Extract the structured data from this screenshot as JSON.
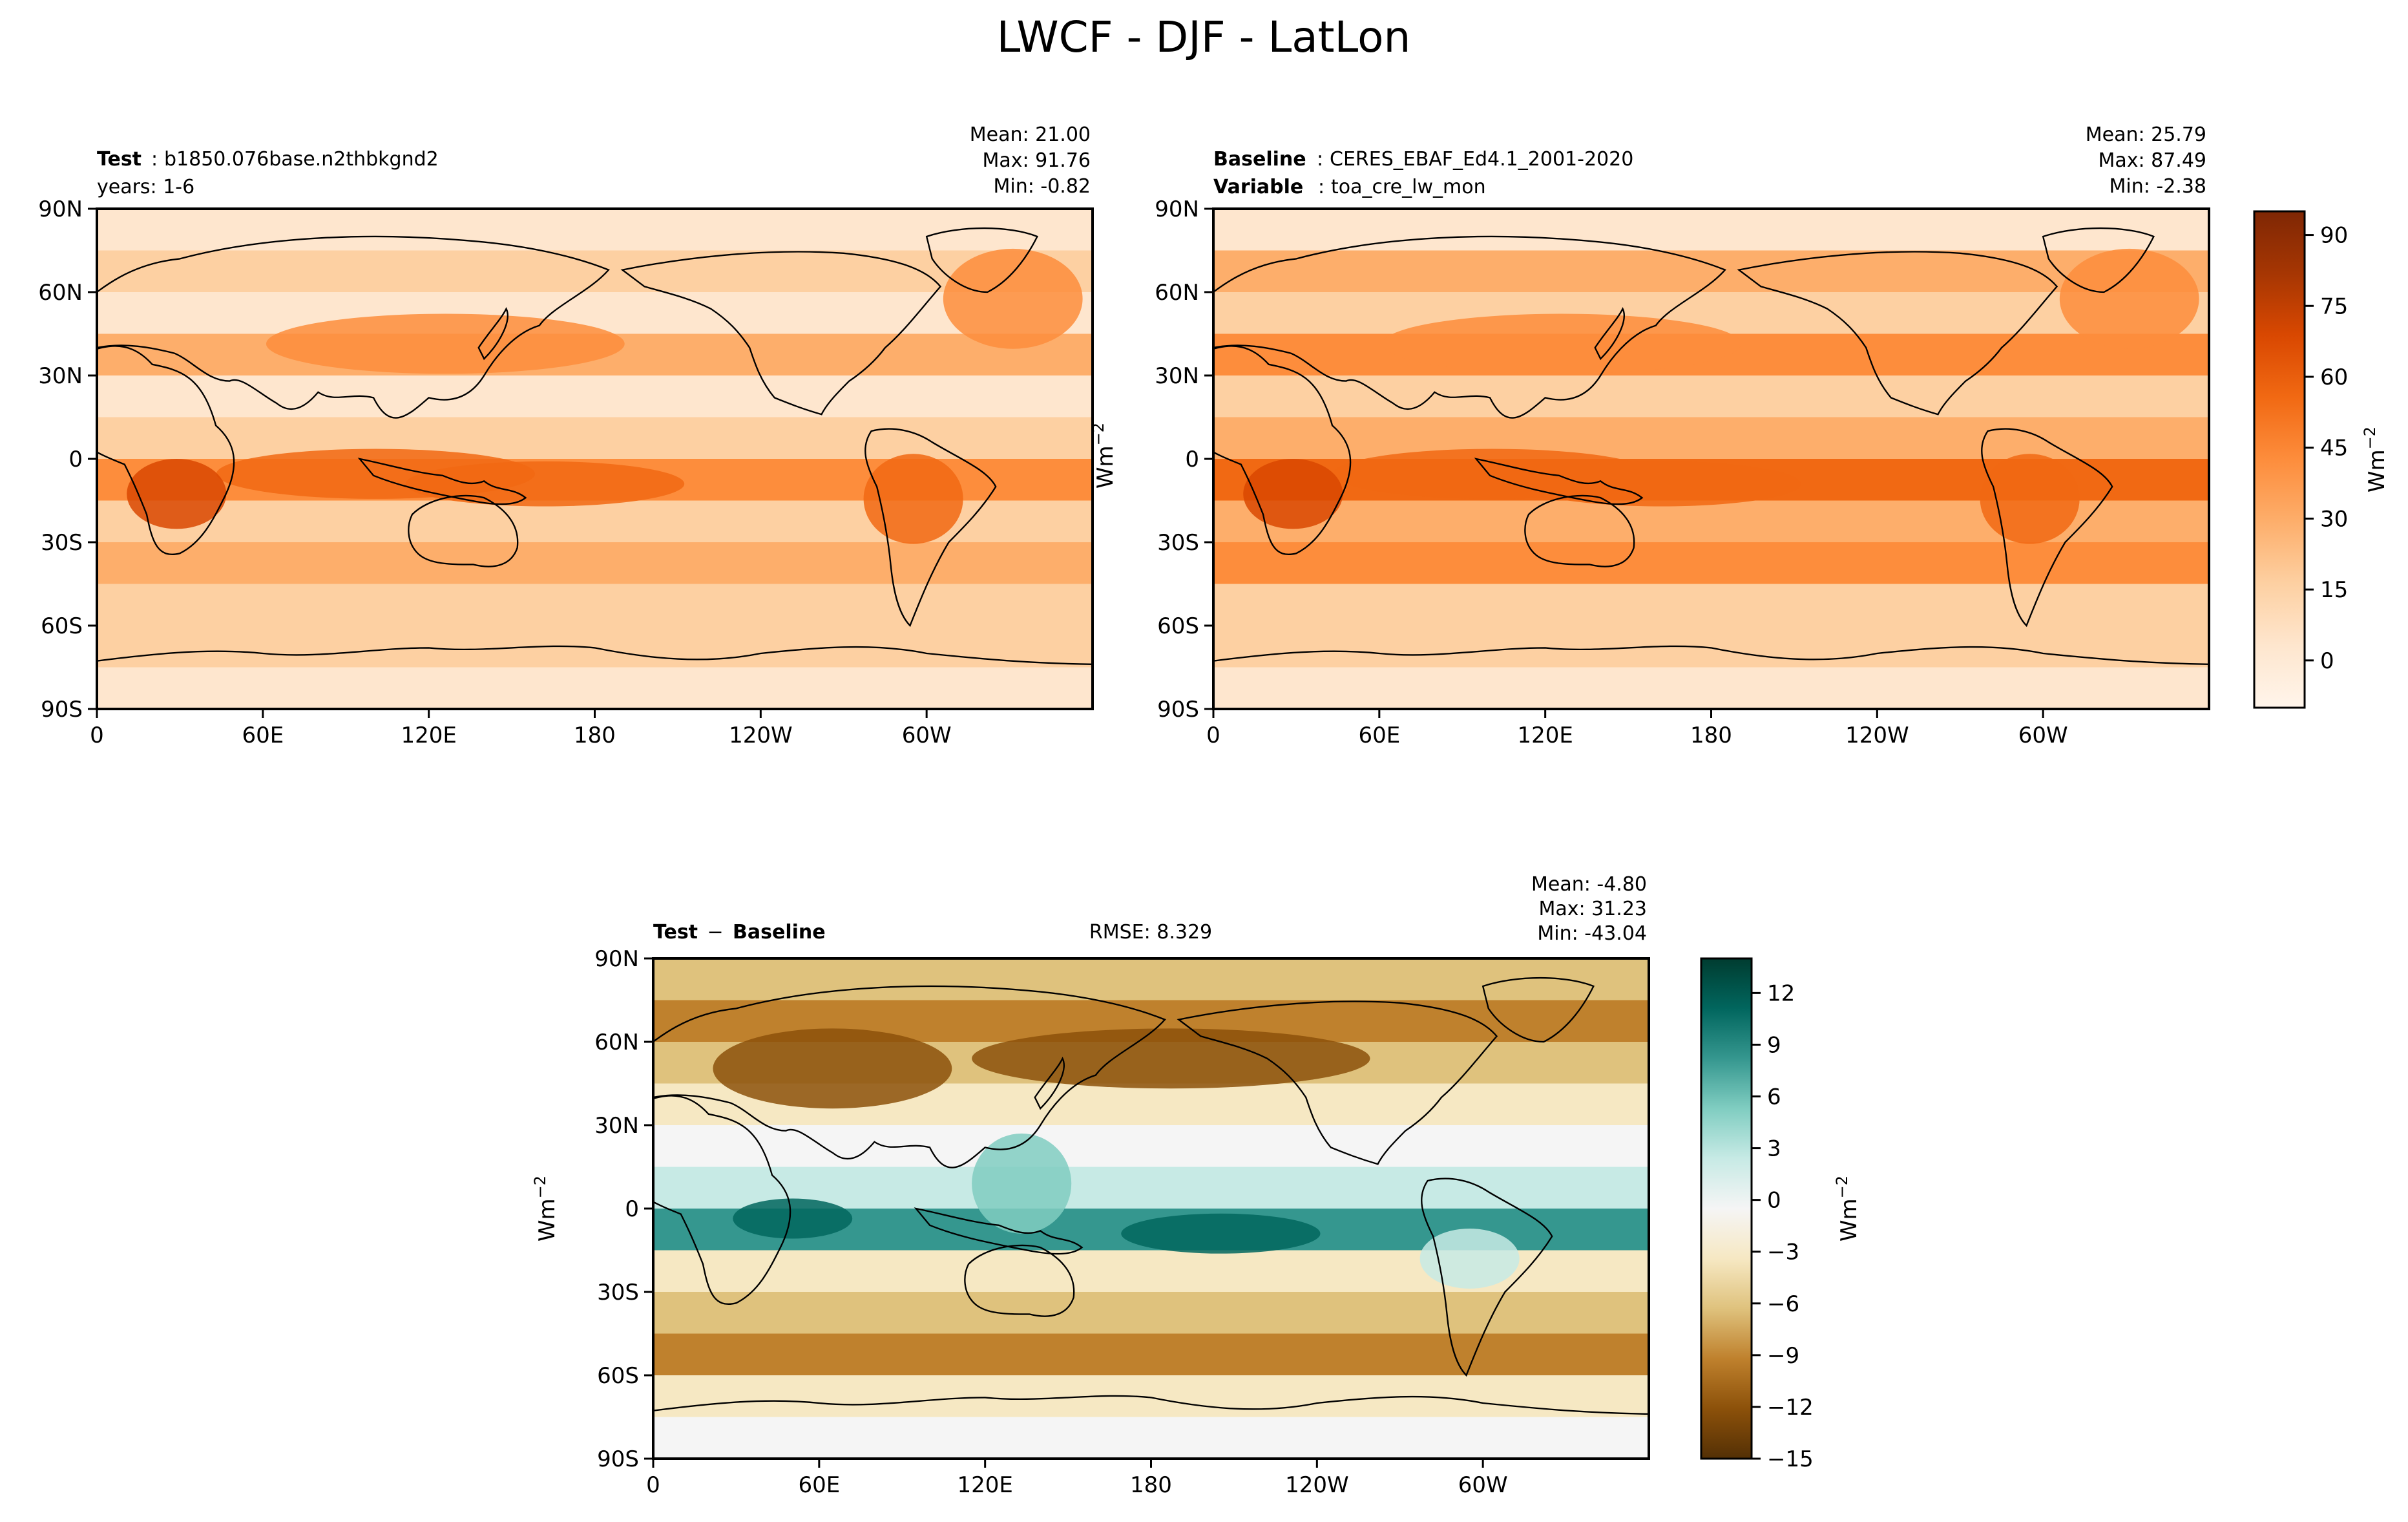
{
  "figure": {
    "title": "LWCF - DJF - LatLon"
  },
  "colors": {
    "seq": [
      "#fff5eb",
      "#fee6ce",
      "#fdd0a2",
      "#fdae6b",
      "#fd8d3c",
      "#f16913",
      "#d94801",
      "#a63603",
      "#7f2704"
    ],
    "div": [
      "#543005",
      "#8c510a",
      "#bf812d",
      "#dfc27d",
      "#f6e8c3",
      "#f5f5f5",
      "#c7eae5",
      "#80cdc1",
      "#35978f",
      "#01665e",
      "#003c30"
    ],
    "land": "#000000"
  },
  "panels": [
    {
      "id": "test",
      "left_label": "Test",
      "left_value": "b1850.076base.n2thbkgnd2",
      "left_line2": "years: 1-6",
      "stats": [
        "Mean: 21.00",
        "Max: 91.76",
        "Min: -0.82"
      ],
      "units": "Wm",
      "units_exp": "−2"
    },
    {
      "id": "baseline",
      "left_label": "Baseline",
      "left_value": "CERES_EBAF_Ed4.1_2001-2020",
      "left_label2": "Variable",
      "left_value2": "toa_cre_lw_mon",
      "stats": [
        "Mean: 25.79",
        "Max: 87.49",
        "Min: -2.38"
      ]
    },
    {
      "id": "diff",
      "left_label": "Test",
      "left_sep": " − ",
      "left_label_b": "Baseline",
      "center_text": "RMSE: 8.329",
      "stats": [
        "Mean: -4.80",
        "Max: 31.23",
        "Min: -43.04"
      ],
      "units": "Wm",
      "units_exp": "−2"
    }
  ],
  "chart_data": [
    {
      "type": "heatmap",
      "title": "Test: b1850.076base.n2thbkgnd2",
      "subtitle": "years: 1-6",
      "variable": "LWCF",
      "season": "DJF",
      "xticks": [
        "0",
        "60E",
        "120E",
        "180",
        "120W",
        "60W"
      ],
      "xtick_values": [
        0,
        60,
        120,
        180,
        240,
        300
      ],
      "yticks": [
        "90N",
        "60N",
        "30N",
        "0",
        "30S",
        "60S",
        "90S"
      ],
      "ytick_values": [
        90,
        60,
        30,
        0,
        -30,
        -60,
        -90
      ],
      "xlim": [
        0,
        360
      ],
      "ylim": [
        -90,
        90
      ],
      "mean": 21.0,
      "max": 91.76,
      "min": -0.82,
      "units": "Wm-2"
    },
    {
      "type": "heatmap",
      "title": "Baseline: CERES_EBAF_Ed4.1_2001-2020",
      "subtitle": "Variable: toa_cre_lw_mon",
      "xticks": [
        "0",
        "60E",
        "120E",
        "180",
        "120W",
        "60W"
      ],
      "xtick_values": [
        0,
        60,
        120,
        180,
        240,
        300
      ],
      "yticks": [
        "90N",
        "60N",
        "30N",
        "0",
        "30S",
        "60S",
        "90S"
      ],
      "ytick_values": [
        90,
        60,
        30,
        0,
        -30,
        -60,
        -90
      ],
      "xlim": [
        0,
        360
      ],
      "ylim": [
        -90,
        90
      ],
      "mean": 25.79,
      "max": 87.49,
      "min": -2.38,
      "colorbar": {
        "ticks": [
          "90",
          "75",
          "60",
          "45",
          "30",
          "15",
          "0"
        ],
        "tick_values": [
          90,
          75,
          60,
          45,
          30,
          15,
          0
        ],
        "range": [
          -10,
          95
        ],
        "label": "Wm-2"
      }
    },
    {
      "type": "heatmap",
      "title": "Test − Baseline",
      "rmse": 8.329,
      "xticks": [
        "0",
        "60E",
        "120E",
        "180",
        "120W",
        "60W"
      ],
      "xtick_values": [
        0,
        60,
        120,
        180,
        240,
        300
      ],
      "yticks": [
        "90N",
        "60N",
        "30N",
        "0",
        "30S",
        "60S",
        "90S"
      ],
      "ytick_values": [
        90,
        60,
        30,
        0,
        -30,
        -60,
        -90
      ],
      "xlim": [
        0,
        360
      ],
      "ylim": [
        -90,
        90
      ],
      "mean": -4.8,
      "max": 31.23,
      "min": -43.04,
      "colorbar": {
        "ticks": [
          "12",
          "9",
          "6",
          "3",
          "0",
          "−3",
          "−6",
          "−9",
          "−12",
          "−15"
        ],
        "tick_values": [
          12,
          9,
          6,
          3,
          0,
          -3,
          -6,
          -9,
          -12,
          -15
        ],
        "range": [
          -15,
          14
        ],
        "label": "Wm-2"
      }
    }
  ]
}
